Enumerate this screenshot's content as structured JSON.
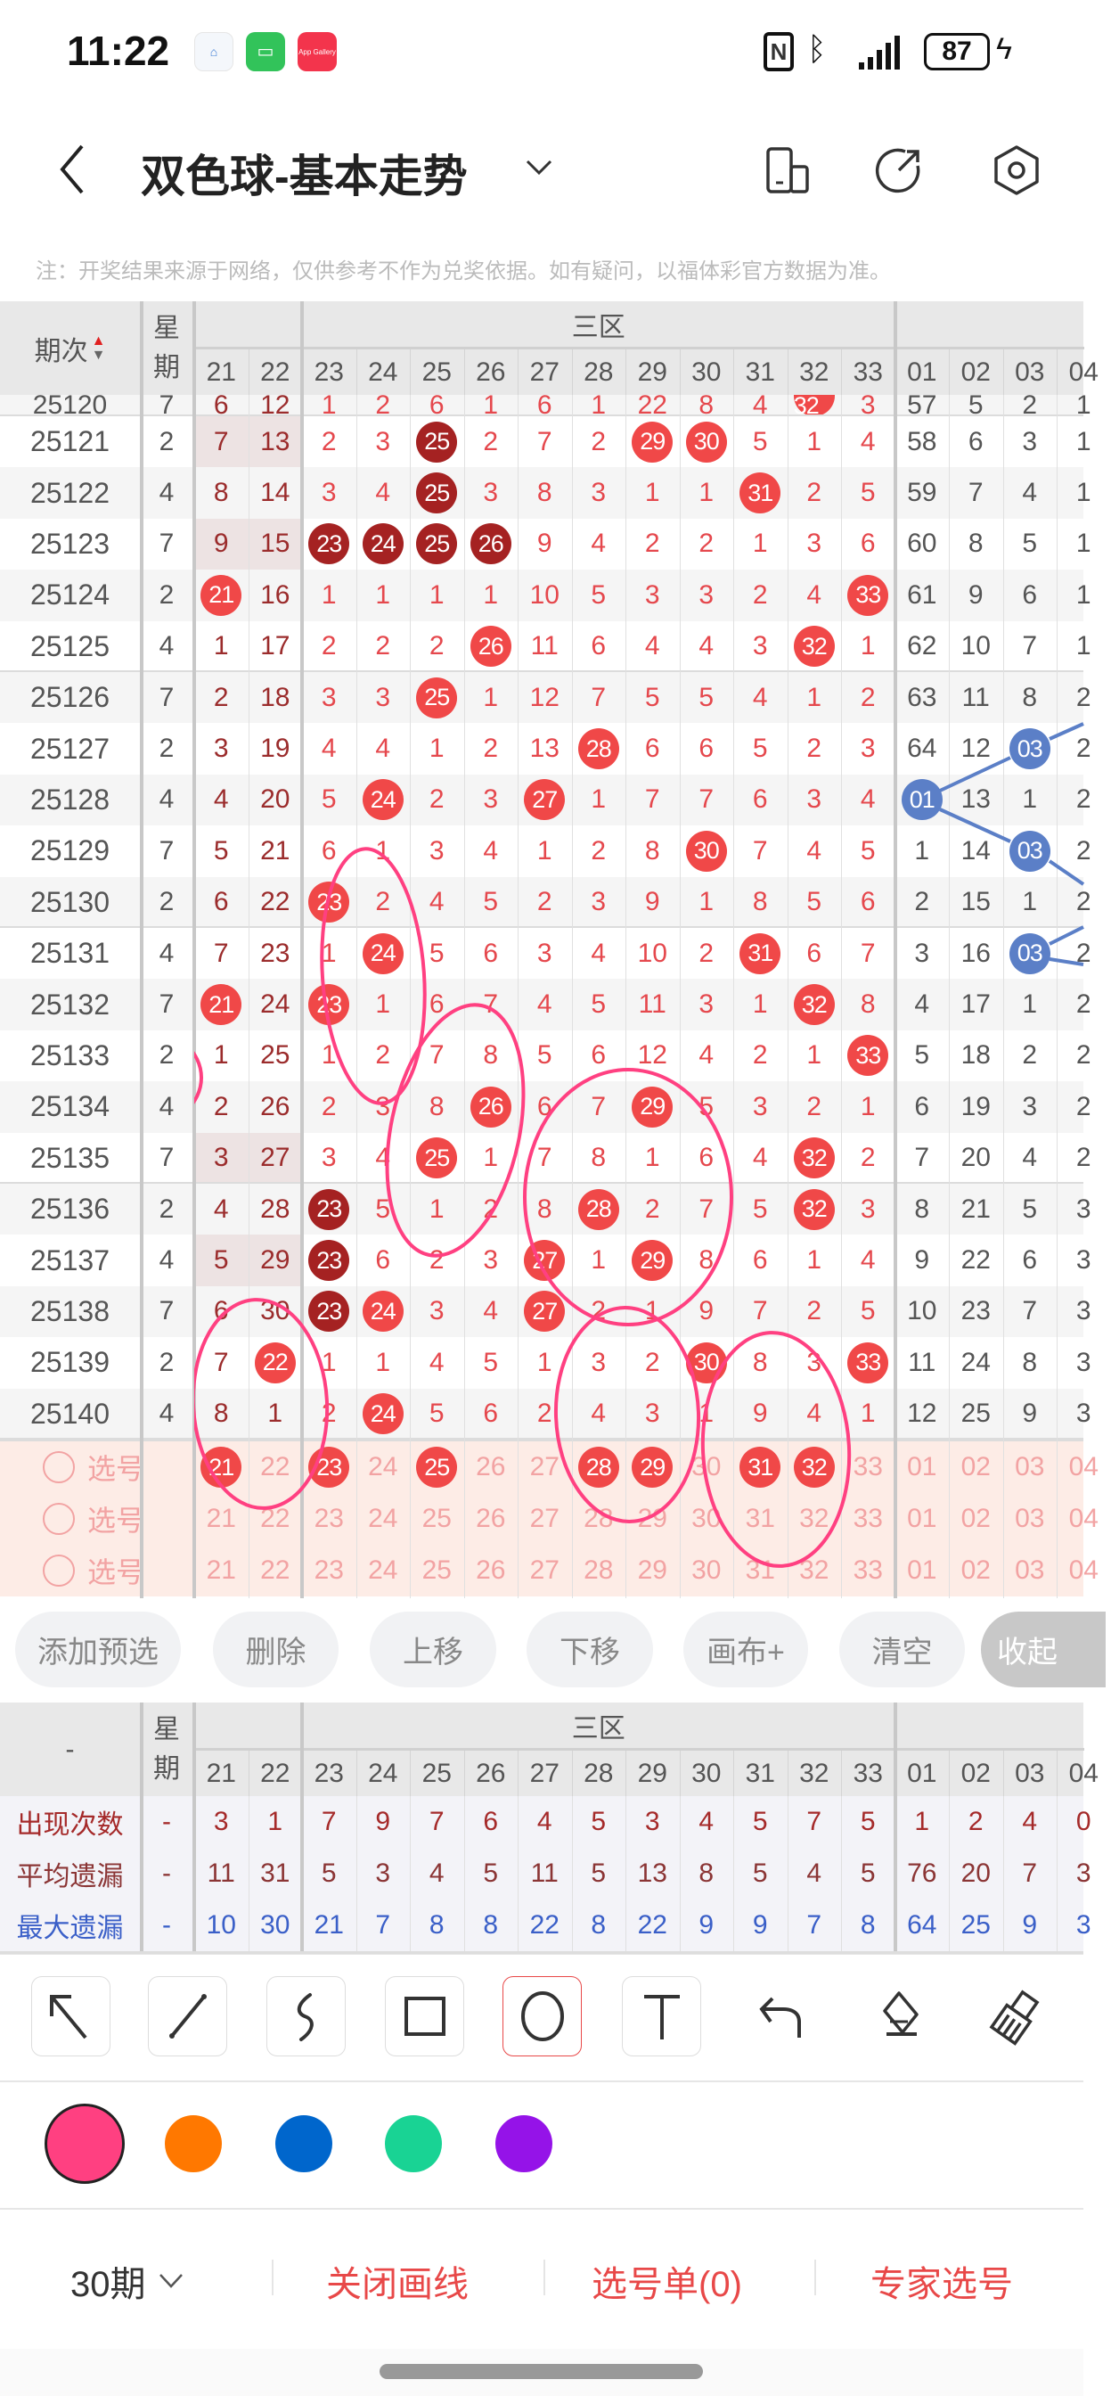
{
  "status_bar": {
    "time": "11:22",
    "battery": "87",
    "app_icons": [
      "ai-home-icon",
      "battery-app-icon",
      "app-gallery-icon"
    ],
    "app_gallery_label": "App Gallery"
  },
  "header": {
    "title": "双色球-基本走势",
    "icons": [
      "back-icon",
      "dropdown-icon",
      "phone-layout-icon",
      "share-icon",
      "settings-icon"
    ]
  },
  "note": "注：开奖结果来源于网络，仅供参考不作为兑奖依据。如有疑问，以福体彩官方数据为准。",
  "table": {
    "period_header": "期次",
    "weekday_header_1": "星",
    "weekday_header_2": "期",
    "zone_label": "三区",
    "columns": [
      "21",
      "22",
      "23",
      "24",
      "25",
      "26",
      "27",
      "28",
      "29",
      "30",
      "31",
      "32",
      "33",
      "01",
      "02",
      "03",
      "04"
    ],
    "rows": [
      {
        "period": "25120",
        "weekday": "7",
        "values": [
          "6",
          "12",
          "1",
          "2",
          "6",
          "1",
          "6",
          "1",
          "22",
          "8",
          "4",
          "32",
          "3",
          "57",
          "5",
          "2",
          "1"
        ],
        "hits": [
          "32"
        ],
        "dark_hits": []
      },
      {
        "period": "25121",
        "weekday": "2",
        "values": [
          "7",
          "13",
          "2",
          "3",
          "25",
          "2",
          "7",
          "2",
          "29",
          "30",
          "5",
          "1",
          "4",
          "58",
          "6",
          "3",
          "1"
        ],
        "hits": [
          "25",
          "29",
          "30"
        ],
        "dark_hits": [
          "25"
        ]
      },
      {
        "period": "25122",
        "weekday": "4",
        "values": [
          "8",
          "14",
          "3",
          "4",
          "25",
          "3",
          "8",
          "3",
          "1",
          "1",
          "31",
          "2",
          "5",
          "59",
          "7",
          "4",
          "1"
        ],
        "hits": [
          "25",
          "31"
        ],
        "dark_hits": [
          "25"
        ]
      },
      {
        "period": "25123",
        "weekday": "7",
        "values": [
          "9",
          "15",
          "23",
          "24",
          "25",
          "26",
          "9",
          "4",
          "2",
          "2",
          "1",
          "3",
          "6",
          "60",
          "8",
          "5",
          "1"
        ],
        "hits": [
          "23",
          "24",
          "25",
          "26"
        ],
        "dark_hits": [
          "23",
          "24",
          "25",
          "26"
        ]
      },
      {
        "period": "25124",
        "weekday": "2",
        "values": [
          "21",
          "16",
          "1",
          "1",
          "1",
          "1",
          "10",
          "5",
          "3",
          "3",
          "2",
          "4",
          "33",
          "61",
          "9",
          "6",
          "1"
        ],
        "hits": [
          "21",
          "33"
        ],
        "dark_hits": []
      },
      {
        "period": "25125",
        "weekday": "4",
        "values": [
          "1",
          "17",
          "2",
          "2",
          "2",
          "26",
          "11",
          "6",
          "4",
          "4",
          "3",
          "32",
          "1",
          "62",
          "10",
          "7",
          "1"
        ],
        "hits": [
          "26",
          "32"
        ],
        "dark_hits": []
      },
      {
        "period": "25126",
        "weekday": "7",
        "values": [
          "2",
          "18",
          "3",
          "3",
          "25",
          "1",
          "12",
          "7",
          "5",
          "5",
          "4",
          "1",
          "2",
          "63",
          "11",
          "8",
          "2"
        ],
        "hits": [
          "25"
        ],
        "dark_hits": []
      },
      {
        "period": "25127",
        "weekday": "2",
        "values": [
          "3",
          "19",
          "4",
          "4",
          "1",
          "2",
          "13",
          "28",
          "6",
          "6",
          "5",
          "2",
          "3",
          "64",
          "12",
          "03",
          "2"
        ],
        "hits": [
          "28",
          "03"
        ],
        "dark_hits": []
      },
      {
        "period": "25128",
        "weekday": "4",
        "values": [
          "4",
          "20",
          "5",
          "24",
          "2",
          "3",
          "27",
          "1",
          "7",
          "7",
          "6",
          "3",
          "4",
          "01",
          "13",
          "1",
          "2"
        ],
        "hits": [
          "24",
          "27",
          "01"
        ],
        "dark_hits": []
      },
      {
        "period": "25129",
        "weekday": "7",
        "values": [
          "5",
          "21",
          "6",
          "1",
          "3",
          "4",
          "1",
          "2",
          "8",
          "30",
          "7",
          "4",
          "5",
          "1",
          "14",
          "03",
          "2"
        ],
        "hits": [
          "30",
          "03"
        ],
        "dark_hits": []
      },
      {
        "period": "25130",
        "weekday": "2",
        "values": [
          "6",
          "22",
          "23",
          "2",
          "4",
          "5",
          "2",
          "3",
          "9",
          "1",
          "8",
          "5",
          "6",
          "2",
          "15",
          "1",
          "2"
        ],
        "hits": [
          "23"
        ],
        "dark_hits": []
      },
      {
        "period": "25131",
        "weekday": "4",
        "values": [
          "7",
          "23",
          "1",
          "24",
          "5",
          "6",
          "3",
          "4",
          "10",
          "2",
          "31",
          "6",
          "7",
          "3",
          "16",
          "03",
          "2"
        ],
        "hits": [
          "24",
          "31",
          "03"
        ],
        "dark_hits": []
      },
      {
        "period": "25132",
        "weekday": "7",
        "values": [
          "21",
          "24",
          "23",
          "1",
          "6",
          "7",
          "4",
          "5",
          "11",
          "3",
          "1",
          "32",
          "8",
          "4",
          "17",
          "1",
          "2"
        ],
        "hits": [
          "21",
          "23",
          "32"
        ],
        "dark_hits": []
      },
      {
        "period": "25133",
        "weekday": "2",
        "values": [
          "1",
          "25",
          "1",
          "2",
          "7",
          "8",
          "5",
          "6",
          "12",
          "4",
          "2",
          "1",
          "33",
          "5",
          "18",
          "2",
          "2"
        ],
        "hits": [
          "33"
        ],
        "dark_hits": []
      },
      {
        "period": "25134",
        "weekday": "4",
        "values": [
          "2",
          "26",
          "2",
          "3",
          "8",
          "26",
          "6",
          "7",
          "29",
          "5",
          "3",
          "2",
          "1",
          "6",
          "19",
          "3",
          "2"
        ],
        "hits": [
          "26",
          "29"
        ],
        "dark_hits": []
      },
      {
        "period": "25135",
        "weekday": "7",
        "values": [
          "3",
          "27",
          "3",
          "4",
          "25",
          "1",
          "7",
          "8",
          "1",
          "6",
          "4",
          "32",
          "2",
          "7",
          "20",
          "4",
          "2"
        ],
        "hits": [
          "25",
          "32"
        ],
        "dark_hits": []
      },
      {
        "period": "25136",
        "weekday": "2",
        "values": [
          "4",
          "28",
          "23",
          "5",
          "1",
          "2",
          "8",
          "28",
          "2",
          "7",
          "5",
          "32",
          "3",
          "8",
          "21",
          "5",
          "3"
        ],
        "hits": [
          "23",
          "28",
          "32"
        ],
        "dark_hits": [
          "23"
        ]
      },
      {
        "period": "25137",
        "weekday": "4",
        "values": [
          "5",
          "29",
          "23",
          "6",
          "2",
          "3",
          "27",
          "1",
          "29",
          "8",
          "6",
          "1",
          "4",
          "9",
          "22",
          "6",
          "3"
        ],
        "hits": [
          "23",
          "27",
          "29"
        ],
        "dark_hits": [
          "23"
        ]
      },
      {
        "period": "25138",
        "weekday": "7",
        "values": [
          "6",
          "30",
          "23",
          "24",
          "3",
          "4",
          "27",
          "2",
          "1",
          "9",
          "7",
          "2",
          "5",
          "10",
          "23",
          "7",
          "3"
        ],
        "hits": [
          "23",
          "24",
          "27"
        ],
        "dark_hits": [
          "23"
        ]
      },
      {
        "period": "25139",
        "weekday": "2",
        "values": [
          "7",
          "22",
          "1",
          "1",
          "4",
          "5",
          "1",
          "3",
          "2",
          "30",
          "8",
          "3",
          "33",
          "11",
          "24",
          "8",
          "3"
        ],
        "hits": [
          "22",
          "30",
          "33"
        ],
        "dark_hits": []
      },
      {
        "period": "25140",
        "weekday": "4",
        "values": [
          "8",
          "1",
          "2",
          "24",
          "5",
          "6",
          "2",
          "4",
          "3",
          "1",
          "9",
          "4",
          "1",
          "12",
          "25",
          "9",
          "3"
        ],
        "hits": [
          "24"
        ],
        "dark_hits": []
      }
    ]
  },
  "selection": {
    "label": "选号",
    "rows": [
      {
        "selected": [
          "21",
          "23",
          "25",
          "28",
          "29",
          "31",
          "32"
        ]
      },
      {
        "selected": []
      },
      {
        "selected": []
      }
    ]
  },
  "actions": [
    "添加预选",
    "删除",
    "上移",
    "下移",
    "画布+",
    "清空",
    "收起"
  ],
  "stats": {
    "corner": "-",
    "weekday_header_1": "星",
    "weekday_header_2": "期",
    "zone_label": "三区",
    "rows": [
      {
        "label": "出现次数",
        "weekday": "-",
        "values": [
          "3",
          "1",
          "7",
          "9",
          "7",
          "6",
          "4",
          "5",
          "3",
          "4",
          "5",
          "7",
          "5",
          "1",
          "2",
          "4",
          "0"
        ],
        "color": "#a52a2a"
      },
      {
        "label": "平均遗漏",
        "weekday": "-",
        "values": [
          "11",
          "31",
          "5",
          "3",
          "4",
          "5",
          "11",
          "5",
          "13",
          "8",
          "5",
          "4",
          "5",
          "76",
          "20",
          "7",
          "3"
        ],
        "color": "#8b3535"
      },
      {
        "label": "最大遗漏",
        "weekday": "-",
        "values": [
          "10",
          "30",
          "21",
          "7",
          "8",
          "8",
          "22",
          "8",
          "22",
          "9",
          "9",
          "7",
          "8",
          "64",
          "25",
          "9",
          "3"
        ],
        "color": "#3a5fc8"
      }
    ]
  },
  "drawing_tools": {
    "tools": [
      "arrow-tool",
      "line-tool",
      "curve-tool",
      "rectangle-tool",
      "circle-tool",
      "text-tool",
      "undo",
      "eraser",
      "clear-brush"
    ],
    "selected_tool": "circle-tool",
    "colors": [
      "#ff4081",
      "#ff7800",
      "#0066cc",
      "#19d394",
      "#9513e8"
    ],
    "selected_color": "#ff4081"
  },
  "bottom_bar": {
    "periods": "30期",
    "close_drawing": "关闭画线",
    "pick_list": "选号单(0)",
    "expert_pick": "专家选号"
  }
}
